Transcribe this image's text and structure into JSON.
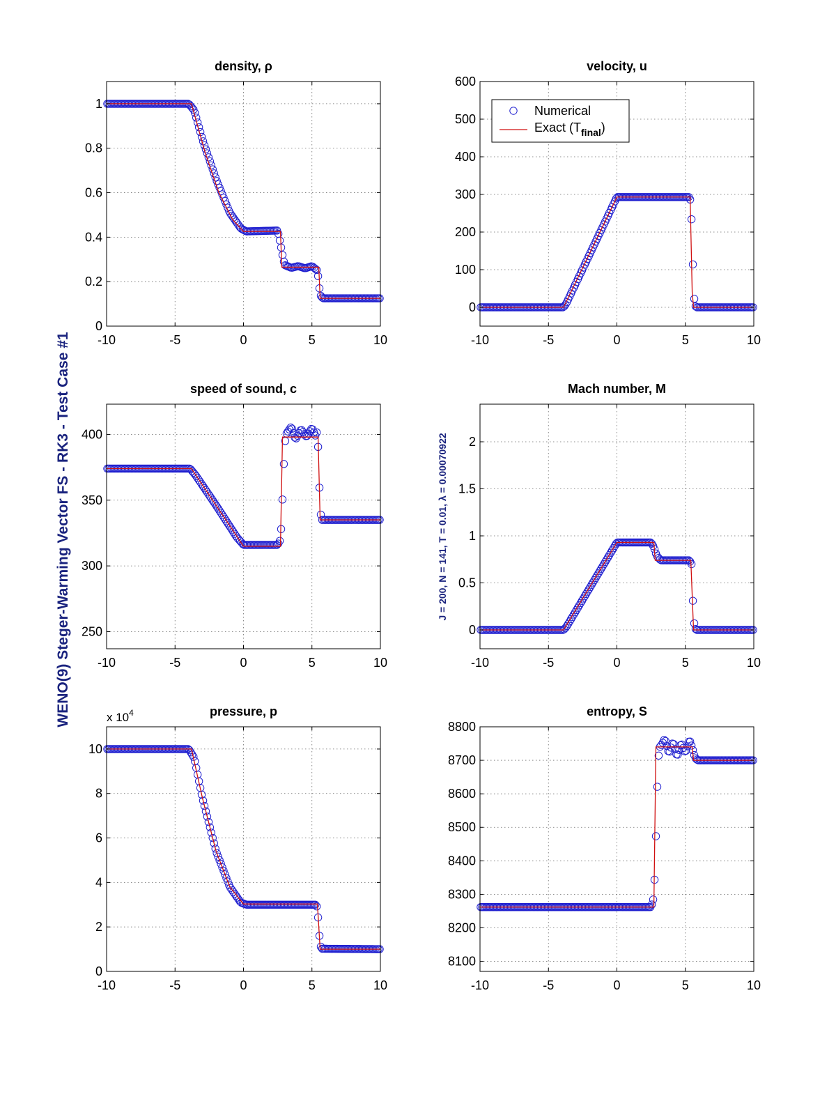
{
  "figure": {
    "side_title": "WENO(9) Steger-Warming Vector FS - RK3 - Test Case #1",
    "param_note": "J = 200,  N = 141,  T = 0.01,  λ = 0.00070922",
    "colors": {
      "numerical": "#1f1fcf",
      "exact": "#d01010",
      "axis": "#000000",
      "grid": "#6b6b6b",
      "side_title": "#1a237e"
    }
  },
  "legend": {
    "numerical_label": "Numerical",
    "exact_label": "Exact (T",
    "exact_sub": "final",
    "exact_close": ")",
    "placement": "top-left of velocity panel"
  },
  "chart_data": [
    {
      "id": "density",
      "type": "line",
      "title": "density, ρ",
      "xlim": [
        -10,
        10
      ],
      "ylim": [
        0,
        1.1
      ],
      "xticks": [
        -10,
        -5,
        0,
        5,
        10
      ],
      "xtick_labels": [
        "-10",
        "-5",
        "0",
        "5",
        "10"
      ],
      "yticks": [
        0,
        0.2,
        0.4,
        0.6,
        0.8,
        1
      ],
      "ytick_labels": [
        "0",
        "0.2",
        "0.4",
        "0.6",
        "0.8",
        "1"
      ],
      "grid": true,
      "legend": false,
      "exact": [
        [
          -10,
          1
        ],
        [
          -3.8,
          1
        ],
        [
          -2.8,
          0.78
        ],
        [
          -1.8,
          0.6
        ],
        [
          -0.8,
          0.48
        ],
        [
          0,
          0.426
        ],
        [
          2.7,
          0.426
        ],
        [
          2.8,
          0.265
        ],
        [
          5.5,
          0.265
        ],
        [
          5.6,
          0.125
        ],
        [
          10,
          0.125
        ]
      ],
      "numerical": {
        "points": 200,
        "profile": [
          [
            -10,
            1
          ],
          [
            -4,
            1
          ],
          [
            -3.6,
            0.97
          ],
          [
            -3,
            0.84
          ],
          [
            -2,
            0.66
          ],
          [
            -1,
            0.51
          ],
          [
            -0.2,
            0.44
          ],
          [
            0.2,
            0.426
          ],
          [
            2.5,
            0.43
          ],
          [
            2.7,
            0.37
          ],
          [
            2.85,
            0.32
          ],
          [
            3,
            0.275
          ],
          [
            3.5,
            0.262
          ],
          [
            4,
            0.27
          ],
          [
            4.5,
            0.26
          ],
          [
            5,
            0.27
          ],
          [
            5.4,
            0.25
          ],
          [
            5.5,
            0.2
          ],
          [
            5.6,
            0.14
          ],
          [
            5.8,
            0.125
          ],
          [
            10,
            0.125
          ]
        ]
      }
    },
    {
      "id": "velocity",
      "type": "line",
      "title": "velocity, u",
      "xlim": [
        -10,
        10
      ],
      "ylim": [
        -50,
        600
      ],
      "xticks": [
        -10,
        -5,
        0,
        5,
        10
      ],
      "xtick_labels": [
        "-10",
        "-5",
        "0",
        "5",
        "10"
      ],
      "yticks": [
        0,
        100,
        200,
        300,
        400,
        500,
        600
      ],
      "ytick_labels": [
        "0",
        "100",
        "200",
        "300",
        "400",
        "500",
        "600"
      ],
      "grid": true,
      "legend": true,
      "exact": [
        [
          -10,
          0
        ],
        [
          -3.9,
          0
        ],
        [
          0,
          293
        ],
        [
          5.35,
          293
        ],
        [
          5.5,
          40
        ],
        [
          5.6,
          0
        ],
        [
          10,
          0
        ]
      ],
      "numerical": {
        "points": 200,
        "profile": [
          [
            -10,
            0
          ],
          [
            -3.9,
            0
          ],
          [
            -3.7,
            10
          ],
          [
            0,
            293
          ],
          [
            5.3,
            293
          ],
          [
            5.4,
            280
          ],
          [
            5.5,
            188
          ],
          [
            5.6,
            40
          ],
          [
            5.7,
            5
          ],
          [
            5.8,
            0
          ],
          [
            10,
            0
          ]
        ]
      }
    },
    {
      "id": "sound",
      "type": "line",
      "title": "speed of sound, c",
      "xlim": [
        -10,
        10
      ],
      "ylim": [
        237,
        423
      ],
      "xticks": [
        -10,
        -5,
        0,
        5,
        10
      ],
      "xtick_labels": [
        "-10",
        "-5",
        "0",
        "5",
        "10"
      ],
      "yticks": [
        250,
        300,
        350,
        400
      ],
      "ytick_labels": [
        "250",
        "300",
        "350",
        "400"
      ],
      "grid": true,
      "legend": false,
      "exact": [
        [
          -10,
          374
        ],
        [
          -3.8,
          374
        ],
        [
          0,
          315
        ],
        [
          2.7,
          315
        ],
        [
          2.85,
          398
        ],
        [
          5.45,
          398
        ],
        [
          5.6,
          335
        ],
        [
          10,
          335
        ]
      ],
      "numerical": {
        "points": 200,
        "profile": [
          [
            -10,
            374
          ],
          [
            -3.9,
            374
          ],
          [
            -3.5,
            369
          ],
          [
            -2,
            346
          ],
          [
            -0.5,
            322
          ],
          [
            0,
            316
          ],
          [
            2.5,
            316
          ],
          [
            2.7,
            320
          ],
          [
            2.8,
            336
          ],
          [
            2.9,
            365
          ],
          [
            3,
            390
          ],
          [
            3.1,
            400
          ],
          [
            3.5,
            406
          ],
          [
            3.8,
            396
          ],
          [
            4.2,
            404
          ],
          [
            4.6,
            398
          ],
          [
            5,
            405
          ],
          [
            5.3,
            398
          ],
          [
            5.4,
            405
          ],
          [
            5.5,
            376
          ],
          [
            5.6,
            343
          ],
          [
            5.7,
            335
          ],
          [
            10,
            335
          ]
        ]
      }
    },
    {
      "id": "mach",
      "type": "line",
      "title": "Mach number, M",
      "xlim": [
        -10,
        10
      ],
      "ylim": [
        -0.2,
        2.4
      ],
      "xticks": [
        -10,
        -5,
        0,
        5,
        10
      ],
      "xtick_labels": [
        "-10",
        "-5",
        "0",
        "5",
        "10"
      ],
      "yticks": [
        0,
        0.5,
        1,
        1.5,
        2
      ],
      "ytick_labels": [
        "0",
        "0.5",
        "1",
        "1.5",
        "2"
      ],
      "grid": true,
      "legend": false,
      "exact": [
        [
          -10,
          0
        ],
        [
          -3.9,
          0
        ],
        [
          0,
          0.93
        ],
        [
          2.7,
          0.93
        ],
        [
          2.8,
          0.74
        ],
        [
          5.4,
          0.74
        ],
        [
          5.6,
          0
        ],
        [
          10,
          0
        ]
      ],
      "numerical": {
        "points": 200,
        "profile": [
          [
            -10,
            0
          ],
          [
            -3.9,
            0
          ],
          [
            -3.7,
            0.03
          ],
          [
            0,
            0.93
          ],
          [
            2.5,
            0.93
          ],
          [
            2.7,
            0.88
          ],
          [
            2.9,
            0.79
          ],
          [
            3.2,
            0.74
          ],
          [
            5.3,
            0.74
          ],
          [
            5.45,
            0.7
          ],
          [
            5.5,
            0.5
          ],
          [
            5.6,
            0.12
          ],
          [
            5.7,
            0.02
          ],
          [
            5.8,
            0
          ],
          [
            10,
            0
          ]
        ]
      }
    },
    {
      "id": "pressure",
      "type": "line",
      "title": "pressure, p",
      "multiplier_label": "x 10",
      "multiplier_exponent": "4",
      "xlim": [
        -10,
        10
      ],
      "ylim": [
        0,
        11
      ],
      "xticks": [
        -10,
        -5,
        0,
        5,
        10
      ],
      "xtick_labels": [
        "-10",
        "-5",
        "0",
        "5",
        "10"
      ],
      "yticks": [
        0,
        2,
        4,
        6,
        8,
        10
      ],
      "ytick_labels": [
        "0",
        "2",
        "4",
        "6",
        "8",
        "10"
      ],
      "grid": true,
      "legend": false,
      "exact": [
        [
          -10,
          10
        ],
        [
          -3.8,
          10
        ],
        [
          -3,
          7.8
        ],
        [
          -2,
          5.4
        ],
        [
          -1,
          3.8
        ],
        [
          0,
          3.03
        ],
        [
          5.4,
          3.03
        ],
        [
          5.6,
          1.0
        ],
        [
          10,
          1.0
        ]
      ],
      "numerical": {
        "points": 200,
        "profile": [
          [
            -10,
            10
          ],
          [
            -4,
            10
          ],
          [
            -3.6,
            9.6
          ],
          [
            -3,
            7.8
          ],
          [
            -2,
            5.4
          ],
          [
            -1,
            3.8
          ],
          [
            -0.2,
            3.1
          ],
          [
            0.2,
            3.0
          ],
          [
            5.3,
            3.0
          ],
          [
            5.4,
            2.85
          ],
          [
            5.5,
            2.0
          ],
          [
            5.6,
            1.2
          ],
          [
            5.7,
            1.02
          ],
          [
            10,
            1.0
          ]
        ]
      }
    },
    {
      "id": "entropy",
      "type": "line",
      "title": "entropy, S",
      "xlim": [
        -10,
        10
      ],
      "ylim": [
        8070,
        8800
      ],
      "xticks": [
        -10,
        -5,
        0,
        5,
        10
      ],
      "xtick_labels": [
        "-10",
        "-5",
        "0",
        "5",
        "10"
      ],
      "yticks": [
        8100,
        8200,
        8300,
        8400,
        8500,
        8600,
        8700,
        8800
      ],
      "ytick_labels": [
        "8100",
        "8200",
        "8300",
        "8400",
        "8500",
        "8600",
        "8700",
        "8800"
      ],
      "grid": true,
      "legend": false,
      "exact": [
        [
          -10,
          8262
        ],
        [
          2.7,
          8262
        ],
        [
          2.85,
          8740
        ],
        [
          5.5,
          8740
        ],
        [
          5.6,
          8700
        ],
        [
          10,
          8700
        ]
      ],
      "numerical": {
        "points": 200,
        "profile": [
          [
            -10,
            8262
          ],
          [
            2.5,
            8262
          ],
          [
            2.7,
            8292
          ],
          [
            2.8,
            8395
          ],
          [
            2.9,
            8552
          ],
          [
            3,
            8690
          ],
          [
            3.1,
            8738
          ],
          [
            3.3,
            8748
          ],
          [
            3.5,
            8765
          ],
          [
            3.8,
            8720
          ],
          [
            4.1,
            8756
          ],
          [
            4.4,
            8710
          ],
          [
            4.7,
            8752
          ],
          [
            5,
            8722
          ],
          [
            5.3,
            8762
          ],
          [
            5.5,
            8738
          ],
          [
            5.7,
            8708
          ],
          [
            5.9,
            8700
          ],
          [
            10,
            8700
          ]
        ]
      }
    }
  ]
}
